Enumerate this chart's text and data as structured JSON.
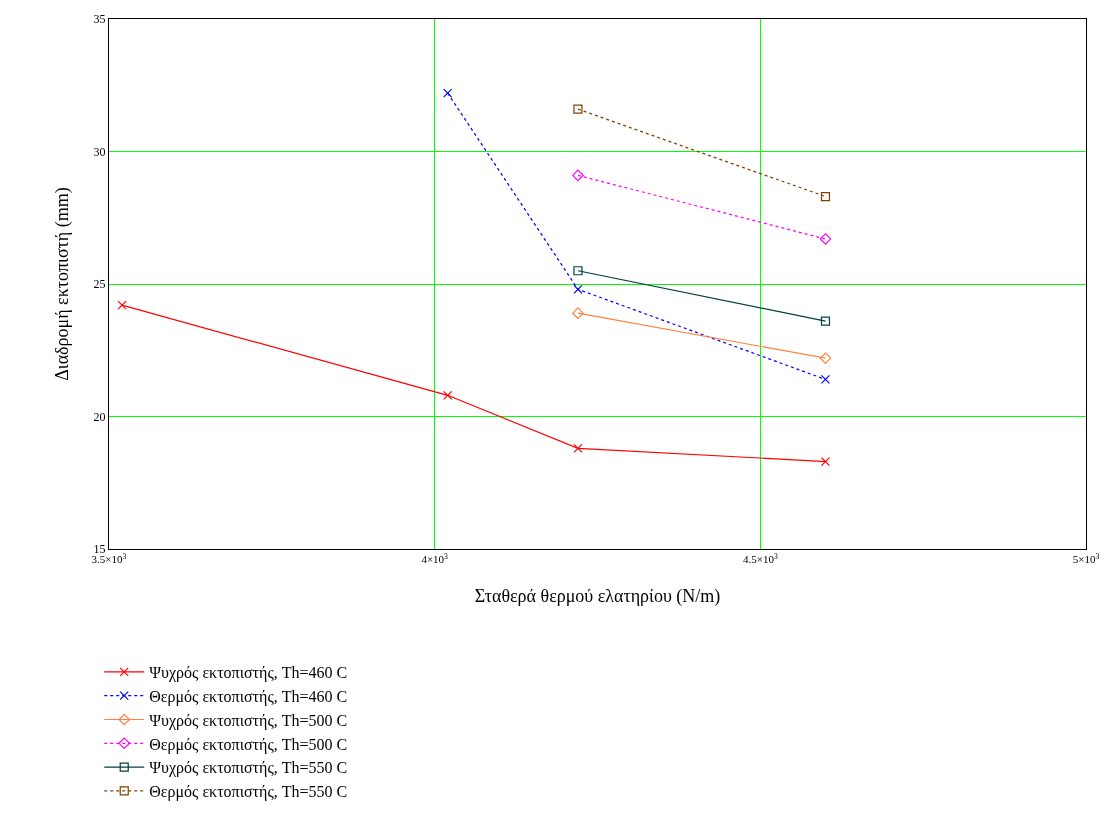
{
  "chart_data": {
    "type": "line",
    "xlabel": "Σταθερά θερμού ελατηρίου (N/m)",
    "ylabel": "Διαδρομή εκτοπιστή (mm)",
    "xlim": [
      3500,
      5000
    ],
    "xticks": [
      {
        "value": 3500,
        "label": "3.5×10$^{3}$"
      },
      {
        "value": 4000,
        "label": "4×10$^{3}$"
      },
      {
        "value": 4500,
        "label": "4.5×10$^{3}$"
      },
      {
        "value": 5000,
        "label": "5×10$^{3}$"
      }
    ],
    "ylim": [
      15,
      35
    ],
    "yticks": [
      15,
      20,
      25,
      30,
      35
    ],
    "grid": true,
    "legend": "bottom left",
    "series": [
      {
        "name": "Ψυχρός εκτοπιστής, Th=460 C",
        "color": "#ff0000",
        "x": [
          3520,
          4020,
          4220,
          4600
        ],
        "values": [
          24.2,
          20.8,
          18.8,
          18.3
        ],
        "marker": "cross",
        "line_style": "solid"
      },
      {
        "name": "Θερμός εκτοπιστής, Th=460 C",
        "color": "#0000ff",
        "x": [
          4020,
          4220,
          4600
        ],
        "values": [
          32.2,
          24.8,
          21.4
        ],
        "marker": "cross",
        "line_style": "dotted"
      },
      {
        "name": "Ψυχρός εκτοπιστής, Th=500 C",
        "color": "#ff8040",
        "x": [
          4220,
          4600
        ],
        "values": [
          23.9,
          22.2
        ],
        "marker": "diamond",
        "line_style": "solid"
      },
      {
        "name": "Θερμός εκτοπιστής, Th=500 C",
        "color": "#ff00ff",
        "x": [
          4220,
          4600
        ],
        "values": [
          29.1,
          26.7
        ],
        "marker": "diamond",
        "line_style": "dotted"
      },
      {
        "name": "Ψυχρός εκτοπιστής, Th=550 C",
        "color": "#004040",
        "x": [
          4220,
          4600
        ],
        "values": [
          25.5,
          23.6
        ],
        "marker": "square",
        "line_style": "solid"
      },
      {
        "name": "Θερμός εκτοπιστής, Th=550 C",
        "color": "#804000",
        "x": [
          4220,
          4600
        ],
        "values": [
          31.6,
          28.3
        ],
        "marker": "square",
        "line_style": "dotted"
      }
    ]
  }
}
